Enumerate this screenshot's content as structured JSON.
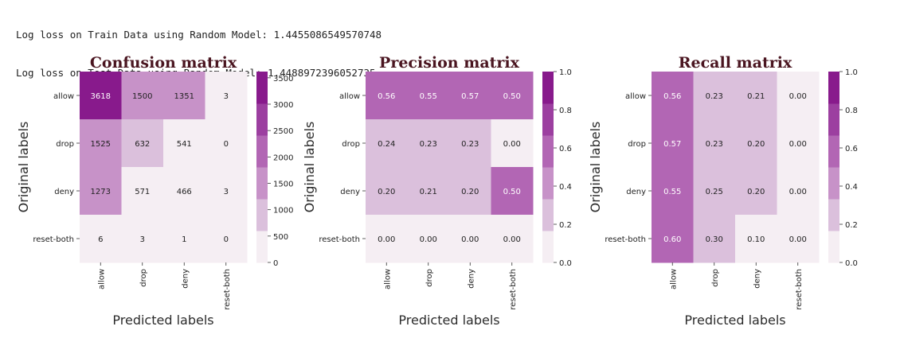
{
  "output": {
    "lines": [
      "Log loss on Train Data using Random Model: 1.4455086549570748",
      "Log loss on Test Data using Random Model: 1.4488972396052735"
    ]
  },
  "palette": {
    "levels": [
      "#f5eef3",
      "#dbc0dc",
      "#c792c8",
      "#b266b4",
      "#9c3fa0",
      "#881a8c"
    ]
  },
  "chart_data": [
    {
      "type": "heatmap",
      "title": "Confusion matrix",
      "xlabel": "Predicted labels",
      "ylabel": "Original labels",
      "x_categories": [
        "allow",
        "drop",
        "deny",
        "reset-both"
      ],
      "y_categories": [
        "allow",
        "drop",
        "deny",
        "reset-both"
      ],
      "values": [
        [
          3618,
          1500,
          1351,
          3
        ],
        [
          1525,
          632,
          541,
          0
        ],
        [
          1273,
          571,
          466,
          3
        ],
        [
          6,
          3,
          1,
          0
        ]
      ],
      "cell_labels": [
        [
          "3618",
          "1500",
          "1351",
          "3"
        ],
        [
          "1525",
          "632",
          "541",
          "0"
        ],
        [
          "1273",
          "571",
          "466",
          "3"
        ],
        [
          "6",
          "3",
          "1",
          "0"
        ]
      ],
      "vmin": 0,
      "vmax": 3618,
      "colorbar_ticks": [
        0,
        500,
        1000,
        1500,
        2000,
        2500,
        3000,
        3500
      ],
      "colorbar_tick_labels": [
        "0",
        "500",
        "1000",
        "1500",
        "2000",
        "2500",
        "3000",
        "3500"
      ]
    },
    {
      "type": "heatmap",
      "title": "Precision matrix",
      "xlabel": "Predicted labels",
      "ylabel": "Original labels",
      "x_categories": [
        "allow",
        "drop",
        "deny",
        "reset-both"
      ],
      "y_categories": [
        "allow",
        "drop",
        "deny",
        "reset-both"
      ],
      "values": [
        [
          0.56,
          0.55,
          0.57,
          0.5
        ],
        [
          0.24,
          0.23,
          0.23,
          0.0
        ],
        [
          0.2,
          0.21,
          0.2,
          0.5
        ],
        [
          0.0,
          0.0,
          0.0,
          0.0
        ]
      ],
      "cell_labels": [
        [
          "0.56",
          "0.55",
          "0.57",
          "0.50"
        ],
        [
          "0.24",
          "0.23",
          "0.23",
          "0.00"
        ],
        [
          "0.20",
          "0.21",
          "0.20",
          "0.50"
        ],
        [
          "0.00",
          "0.00",
          "0.00",
          "0.00"
        ]
      ],
      "vmin": 0,
      "vmax": 1,
      "colorbar_ticks": [
        0,
        0.2,
        0.4,
        0.6,
        0.8,
        1.0
      ],
      "colorbar_tick_labels": [
        "0.0",
        "0.2",
        "0.4",
        "0.6",
        "0.8",
        "1.0"
      ]
    },
    {
      "type": "heatmap",
      "title": "Recall matrix",
      "xlabel": "Predicted labels",
      "ylabel": "Original labels",
      "x_categories": [
        "allow",
        "drop",
        "deny",
        "reset-both"
      ],
      "y_categories": [
        "allow",
        "drop",
        "deny",
        "reset-both"
      ],
      "values": [
        [
          0.56,
          0.23,
          0.21,
          0.0
        ],
        [
          0.57,
          0.23,
          0.2,
          0.0
        ],
        [
          0.55,
          0.25,
          0.2,
          0.0
        ],
        [
          0.6,
          0.3,
          0.1,
          0.0
        ]
      ],
      "cell_labels": [
        [
          "0.56",
          "0.23",
          "0.21",
          "0.00"
        ],
        [
          "0.57",
          "0.23",
          "0.20",
          "0.00"
        ],
        [
          "0.55",
          "0.25",
          "0.20",
          "0.00"
        ],
        [
          "0.60",
          "0.30",
          "0.10",
          "0.00"
        ]
      ],
      "vmin": 0,
      "vmax": 1,
      "colorbar_ticks": [
        0,
        0.2,
        0.4,
        0.6,
        0.8,
        1.0
      ],
      "colorbar_tick_labels": [
        "0.0",
        "0.2",
        "0.4",
        "0.6",
        "0.8",
        "1.0"
      ]
    }
  ]
}
